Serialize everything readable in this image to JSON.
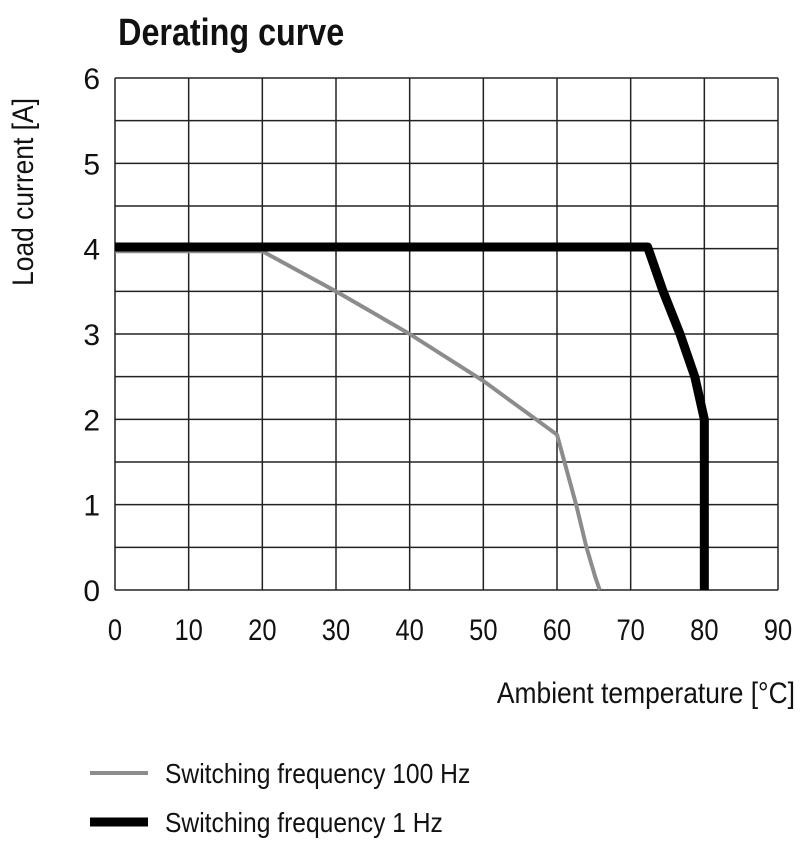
{
  "chart_data": {
    "type": "line",
    "title": "Derating curve",
    "xlabel": "Ambient temperature [°C]",
    "ylabel": "Load current [A]",
    "xlim": [
      0,
      90
    ],
    "ylim": [
      0,
      6
    ],
    "xticks": [
      0,
      10,
      20,
      30,
      40,
      50,
      60,
      70,
      80,
      90
    ],
    "yticks": [
      0,
      1,
      2,
      3,
      4,
      5,
      6
    ],
    "grid": true,
    "minor_y_grid_step": 0.5,
    "legend_position": "bottom-left",
    "series": [
      {
        "name": "Switching frequency 100 Hz",
        "color": "#8c8c8c",
        "x": [
          0,
          20,
          30,
          40,
          50,
          60,
          62.6,
          64.0,
          65.2,
          65.8
        ],
        "y": [
          3.97,
          3.97,
          3.5,
          3.0,
          2.45,
          1.82,
          1.0,
          0.5,
          0.15,
          0
        ]
      },
      {
        "name": "Switching frequency 1 Hz",
        "color": "#000000",
        "x": [
          0,
          72.3,
          74.4,
          76.7,
          78.7,
          80,
          80
        ],
        "y": [
          4.02,
          4.02,
          3.5,
          3.0,
          2.5,
          2.0,
          0
        ]
      }
    ]
  }
}
